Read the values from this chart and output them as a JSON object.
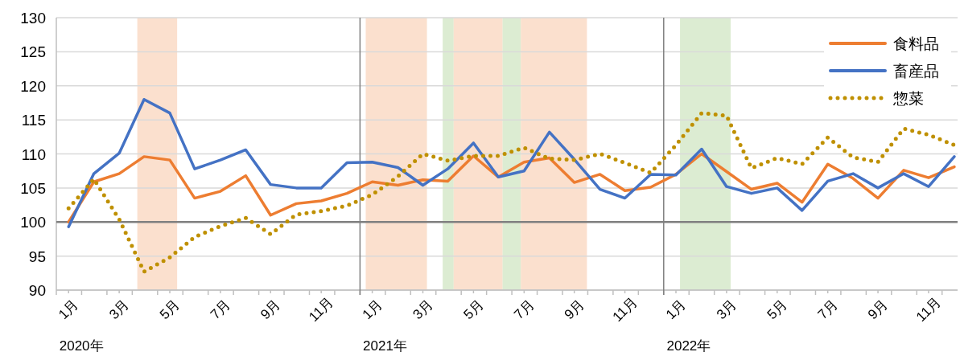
{
  "chart_data": {
    "type": "line",
    "x": [
      "2020-01-16",
      "2020-02-15",
      "2020-03-16",
      "2020-04-15",
      "2020-05-16",
      "2020-06-15",
      "2020-07-16",
      "2020-08-16",
      "2020-09-15",
      "2020-10-16",
      "2020-11-15",
      "2020-12-16",
      "2021-01-16",
      "2021-02-15",
      "2021-03-16",
      "2021-04-15",
      "2021-05-16",
      "2021-06-15",
      "2021-07-16",
      "2021-08-16",
      "2021-09-15",
      "2021-10-16",
      "2021-11-15",
      "2021-12-16",
      "2022-01-16",
      "2022-02-15",
      "2022-03-16",
      "2022-04-15",
      "2022-05-16",
      "2022-06-15",
      "2022-07-16",
      "2022-08-16",
      "2022-09-15",
      "2022-10-16",
      "2022-11-15",
      "2022-12-16"
    ],
    "series": [
      {
        "name": "食料品",
        "color": "#ed7d31",
        "line_style": "solid",
        "values": [
          100.0,
          105.9,
          107.1,
          109.6,
          109.1,
          103.5,
          104.5,
          106.8,
          101.0,
          102.7,
          103.1,
          104.2,
          105.9,
          105.4,
          106.2,
          106.0,
          109.7,
          106.6,
          108.8,
          109.4,
          105.8,
          107.0,
          104.6,
          105.1,
          107.0,
          110.0,
          107.4,
          104.8,
          105.7,
          102.9,
          108.5,
          106.4,
          103.5,
          107.6,
          106.5,
          108.1
        ]
      },
      {
        "name": "畜産品",
        "color": "#4472c4",
        "line_style": "solid",
        "values": [
          99.3,
          107.1,
          110.1,
          118.0,
          116.0,
          107.8,
          109.1,
          110.6,
          105.5,
          105.0,
          105.0,
          108.7,
          108.8,
          108.0,
          105.4,
          107.8,
          111.6,
          106.6,
          107.5,
          113.2,
          109.2,
          104.8,
          103.5,
          107.0,
          106.9,
          110.7,
          105.2,
          104.2,
          105.0,
          101.7,
          106.0,
          107.1,
          105.0,
          107.1,
          105.2,
          109.6
        ]
      },
      {
        "name": "惣菜",
        "color": "#bf9000",
        "line_style": "dotted",
        "values": [
          102.0,
          106.3,
          100.4,
          92.7,
          94.8,
          97.8,
          99.4,
          100.6,
          98.2,
          101.1,
          101.6,
          102.4,
          104.0,
          106.7,
          110.0,
          109.0,
          109.7,
          109.7,
          110.9,
          109.3,
          109.1,
          110.0,
          108.7,
          107.2,
          111.3,
          116.0,
          115.6,
          107.9,
          109.4,
          108.5,
          112.4,
          109.5,
          108.8,
          113.7,
          112.8,
          111.3
        ]
      }
    ],
    "xlim": [
      "2020-01-01",
      "2022-12-20"
    ],
    "xticks": [
      {
        "value": "2020-01-16",
        "label": "1月"
      },
      {
        "value": "2020-03-16",
        "label": "3月"
      },
      {
        "value": "2020-05-16",
        "label": "5月"
      },
      {
        "value": "2020-07-16",
        "label": "7月"
      },
      {
        "value": "2020-09-15",
        "label": "9月"
      },
      {
        "value": "2020-11-15",
        "label": "11月"
      },
      {
        "value": "2021-01-16",
        "label": "1月"
      },
      {
        "value": "2021-03-16",
        "label": "3月"
      },
      {
        "value": "2021-05-16",
        "label": "5月"
      },
      {
        "value": "2021-07-16",
        "label": "7月"
      },
      {
        "value": "2021-09-15",
        "label": "9月"
      },
      {
        "value": "2021-11-15",
        "label": "11月"
      },
      {
        "value": "2022-01-16",
        "label": "1月"
      },
      {
        "value": "2022-03-16",
        "label": "3月"
      },
      {
        "value": "2022-05-16",
        "label": "5月"
      },
      {
        "value": "2022-07-16",
        "label": "7月"
      },
      {
        "value": "2022-09-15",
        "label": "9月"
      },
      {
        "value": "2022-11-15",
        "label": "11月"
      },
      {
        "value": "2020-01-01",
        "label": null
      },
      {
        "value": "2020-02-01",
        "label": null
      },
      {
        "value": "2020-03-01",
        "label": null
      },
      {
        "value": "2020-04-01",
        "label": null
      },
      {
        "value": "2020-05-01",
        "label": null
      },
      {
        "value": "2020-06-01",
        "label": null
      },
      {
        "value": "2020-07-01",
        "label": null
      },
      {
        "value": "2020-08-01",
        "label": null
      },
      {
        "value": "2020-09-01",
        "label": null
      },
      {
        "value": "2020-10-01",
        "label": null
      },
      {
        "value": "2020-11-01",
        "label": null
      },
      {
        "value": "2020-12-01",
        "label": null
      },
      {
        "value": "2021-01-01",
        "label": null
      },
      {
        "value": "2021-02-01",
        "label": null
      },
      {
        "value": "2021-03-01",
        "label": null
      },
      {
        "value": "2021-04-01",
        "label": null
      },
      {
        "value": "2021-05-01",
        "label": null
      },
      {
        "value": "2021-06-01",
        "label": null
      },
      {
        "value": "2021-07-01",
        "label": null
      },
      {
        "value": "2021-08-01",
        "label": null
      },
      {
        "value": "2021-09-01",
        "label": null
      },
      {
        "value": "2021-10-01",
        "label": null
      },
      {
        "value": "2021-11-01",
        "label": null
      },
      {
        "value": "2021-12-01",
        "label": null
      },
      {
        "value": "2022-01-01",
        "label": null
      },
      {
        "value": "2022-02-01",
        "label": null
      },
      {
        "value": "2022-03-01",
        "label": null
      },
      {
        "value": "2022-04-01",
        "label": null
      },
      {
        "value": "2022-05-01",
        "label": null
      },
      {
        "value": "2022-06-01",
        "label": null
      },
      {
        "value": "2022-07-01",
        "label": null
      },
      {
        "value": "2022-08-01",
        "label": null
      },
      {
        "value": "2022-09-01",
        "label": null
      },
      {
        "value": "2022-10-01",
        "label": null
      },
      {
        "value": "2022-11-01",
        "label": null
      },
      {
        "value": "2022-12-01",
        "label": null
      }
    ],
    "ylim": [
      90,
      130
    ],
    "yticks": [
      90,
      95,
      100,
      105,
      110,
      115,
      120,
      125,
      130
    ],
    "grid": "y",
    "legend": "top right",
    "ref_lines": [
      {
        "axis": "y",
        "value": 100,
        "color": "#808080"
      },
      {
        "axis": "x",
        "value": "2021-01-01",
        "color": "#808080"
      },
      {
        "axis": "x",
        "value": "2022-01-01",
        "color": "#808080"
      }
    ],
    "bands": [
      {
        "axis": "x",
        "from": "2020-04-07",
        "to": "2020-05-25",
        "color": "#f8cbad"
      },
      {
        "axis": "x",
        "from": "2021-01-08",
        "to": "2021-03-21",
        "color": "#f8cbad"
      },
      {
        "axis": "x",
        "from": "2021-04-09",
        "to": "2021-04-22",
        "color": "#c5e0b4"
      },
      {
        "axis": "x",
        "from": "2021-04-22",
        "to": "2021-06-20",
        "color": "#f8cbad"
      },
      {
        "axis": "x",
        "from": "2021-06-20",
        "to": "2021-07-12",
        "color": "#c5e0b4"
      },
      {
        "axis": "x",
        "from": "2021-07-12",
        "to": "2021-09-30",
        "color": "#f8cbad"
      },
      {
        "axis": "x",
        "from": "2022-01-21",
        "to": "2022-03-21",
        "color": "#c5e0b4"
      }
    ],
    "annotations": [
      "2020年",
      "2021年",
      "2022年"
    ]
  }
}
